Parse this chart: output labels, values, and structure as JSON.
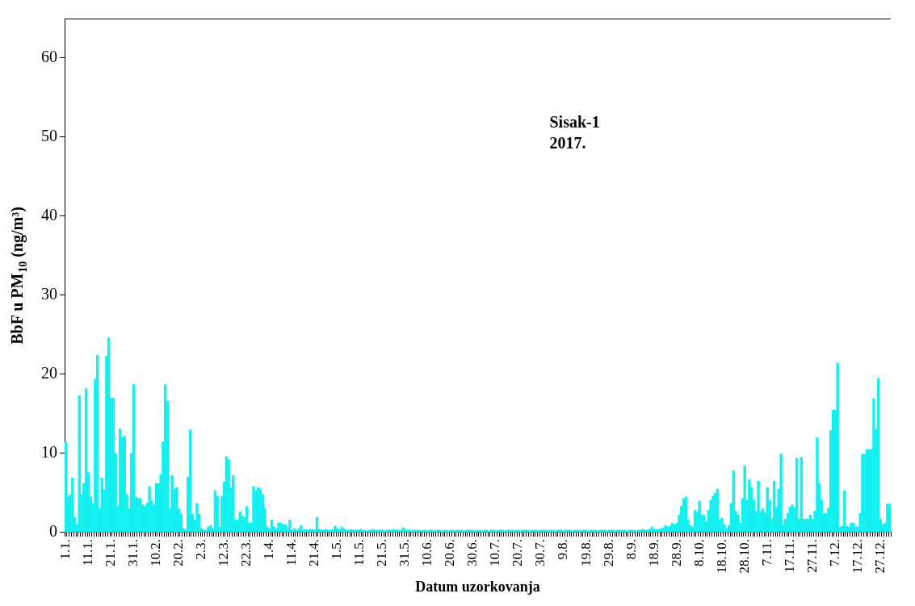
{
  "chart_data": {
    "type": "bar",
    "xlabel": "Datum uzorkovanja",
    "ylabel": "BbF u PM$_{10}$ (ng/m³)",
    "annotations": [
      "Sisak-1",
      "2017."
    ],
    "categories": [
      "1.1.",
      null,
      null,
      null,
      null,
      null,
      null,
      null,
      null,
      null,
      "11.1.",
      null,
      null,
      null,
      null,
      null,
      null,
      null,
      null,
      null,
      "21.1.",
      null,
      null,
      null,
      null,
      null,
      null,
      null,
      null,
      null,
      "31.1.",
      null,
      null,
      null,
      null,
      null,
      null,
      null,
      null,
      null,
      "10.2.",
      null,
      null,
      null,
      null,
      null,
      null,
      null,
      null,
      null,
      "20.2.",
      null,
      null,
      null,
      null,
      null,
      null,
      null,
      null,
      null,
      "2.3.",
      null,
      null,
      null,
      null,
      null,
      null,
      null,
      null,
      null,
      "12.3.",
      null,
      null,
      null,
      null,
      null,
      null,
      null,
      null,
      null,
      "22.3.",
      null,
      null,
      null,
      null,
      null,
      null,
      null,
      null,
      null,
      "1.4.",
      null,
      null,
      null,
      null,
      null,
      null,
      null,
      null,
      null,
      "11.4.",
      null,
      null,
      null,
      null,
      null,
      null,
      null,
      null,
      null,
      "21.4.",
      null,
      null,
      null,
      null,
      null,
      null,
      null,
      null,
      null,
      "1.5.",
      null,
      null,
      null,
      null,
      null,
      null,
      null,
      null,
      null,
      "11.5.",
      null,
      null,
      null,
      null,
      null,
      null,
      null,
      null,
      null,
      "21.5.",
      null,
      null,
      null,
      null,
      null,
      null,
      null,
      null,
      null,
      "31.5.",
      null,
      null,
      null,
      null,
      null,
      null,
      null,
      null,
      null,
      "10.6.",
      null,
      null,
      null,
      null,
      null,
      null,
      null,
      null,
      null,
      "20.6.",
      null,
      null,
      null,
      null,
      null,
      null,
      null,
      null,
      null,
      "30.6.",
      null,
      null,
      null,
      null,
      null,
      null,
      null,
      null,
      null,
      "10.7.",
      null,
      null,
      null,
      null,
      null,
      null,
      null,
      null,
      null,
      "20.7.",
      null,
      null,
      null,
      null,
      null,
      null,
      null,
      null,
      null,
      "30.7.",
      null,
      null,
      null,
      null,
      null,
      null,
      null,
      null,
      null,
      "9.8.",
      null,
      null,
      null,
      null,
      null,
      null,
      null,
      null,
      null,
      "19.8.",
      null,
      null,
      null,
      null,
      null,
      null,
      null,
      null,
      null,
      "29.8.",
      null,
      null,
      null,
      null,
      null,
      null,
      null,
      null,
      null,
      "8.9.",
      null,
      null,
      null,
      null,
      null,
      null,
      null,
      null,
      null,
      "18.9.",
      null,
      null,
      null,
      null,
      null,
      null,
      null,
      null,
      null,
      "28.9.",
      null,
      null,
      null,
      null,
      null,
      null,
      null,
      null,
      null,
      "8.10.",
      null,
      null,
      null,
      null,
      null,
      null,
      null,
      null,
      null,
      "18.10.",
      null,
      null,
      null,
      null,
      null,
      null,
      null,
      null,
      null,
      "28.10.",
      null,
      null,
      null,
      null,
      null,
      null,
      null,
      null,
      null,
      "7.11.",
      null,
      null,
      null,
      null,
      null,
      null,
      null,
      null,
      null,
      "17.11.",
      null,
      null,
      null,
      null,
      null,
      null,
      null,
      null,
      null,
      "27.11.",
      null,
      null,
      null,
      null,
      null,
      null,
      null,
      null,
      null,
      "7.12.",
      null,
      null,
      null,
      null,
      null,
      null,
      null,
      null,
      null,
      "17.12.",
      null,
      null,
      null,
      null,
      null,
      null,
      null,
      null,
      null,
      "27.12.",
      null,
      null,
      null,
      null
    ],
    "values": [
      11.4,
      4.5,
      4.8,
      6.9,
      1.9,
      1.0,
      17.3,
      4.8,
      6.2,
      18.2,
      7.6,
      4.5,
      3.7,
      19.4,
      22.4,
      3,
      6.9,
      5.4,
      22.3,
      24.6,
      17,
      17,
      10,
      3.3,
      13.1,
      12,
      12.2,
      4.8,
      3,
      10,
      18.7,
      4.5,
      4.3,
      4.3,
      3.5,
      3.3,
      3.7,
      5.8,
      4,
      3.5,
      6.2,
      6.2,
      7.3,
      11.5,
      18.7,
      16.6,
      3,
      7.2,
      5.5,
      5.7,
      3,
      2.3,
      0.5,
      0.3,
      7,
      13,
      2.3,
      1.6,
      3.7,
      2.3,
      0.5,
      0.3,
      0.3,
      0.7,
      0.9,
      0.5,
      5.3,
      4.6,
      0.7,
      4.6,
      6.4,
      9.6,
      9.2,
      5.7,
      7.2,
      1.6,
      1.6,
      2.6,
      2.1,
      1.9,
      3.3,
      1.2,
      1.2,
      5.8,
      5.3,
      5.7,
      5.5,
      4.8,
      3,
      0.7,
      0.5,
      1.6,
      0.7,
      0.5,
      1.2,
      1.2,
      1,
      1,
      0.5,
      1.6,
      0.3,
      0.5,
      0.3,
      0.5,
      0.9,
      0.3,
      0.4,
      0.3,
      0.4,
      0.4,
      0.3,
      1.9,
      0.4,
      0.3,
      0.3,
      0.4,
      0.3,
      0.3,
      0.4,
      0.8,
      0.5,
      0.4,
      0.7,
      0.5,
      0.3,
      0.3,
      0.4,
      0.3,
      0.3,
      0.3,
      0.4,
      0.3,
      0.3,
      0.2,
      0.3,
      0.3,
      0.4,
      0.3,
      0.3,
      0.3,
      0.3,
      0.2,
      0.3,
      0.3,
      0.3,
      0.4,
      0.3,
      0.3,
      0.3,
      0.6,
      0.4,
      0.3,
      0.3,
      0.2,
      0.3,
      0.3,
      0.3,
      0.2,
      0.3,
      0.3,
      0.2,
      0.3,
      0.3,
      0.2,
      0.3,
      0.3,
      0.2,
      0.3,
      0.3,
      0.2,
      0.3,
      0.3,
      0.2,
      0.3,
      0.3,
      0.3,
      0.2,
      0.3,
      0.3,
      0.3,
      0.3,
      0.2,
      0.3,
      0.3,
      0.2,
      0.3,
      0.3,
      0.2,
      0.3,
      0.3,
      0.2,
      0.3,
      0.3,
      0.3,
      0.2,
      0.3,
      0.3,
      0.3,
      0.2,
      0.3,
      0.3,
      0.2,
      0.3,
      0.3,
      0.3,
      0.2,
      0.3,
      0.3,
      0.3,
      0.2,
      0.3,
      0.3,
      0.3,
      0.2,
      0.3,
      0.3,
      0.2,
      0.3,
      0.3,
      0.3,
      0.2,
      0.3,
      0.3,
      0.3,
      0.2,
      0.3,
      0.3,
      0.2,
      0.3,
      0.3,
      0.3,
      0.2,
      0.3,
      0.3,
      0.3,
      0.2,
      0.3,
      0.3,
      0.3,
      0.2,
      0.3,
      0.3,
      0.3,
      0.2,
      0.3,
      0.3,
      0.3,
      0.3,
      0.2,
      0.3,
      0.3,
      0.3,
      0.2,
      0.3,
      0.3,
      0.4,
      0.3,
      0.3,
      0.4,
      0.7,
      0.4,
      0.4,
      0.4,
      0.5,
      0.6,
      0.9,
      0.7,
      0.8,
      1.2,
      1.0,
      1.2,
      2.2,
      3.3,
      4.3,
      4.5,
      1.6,
      0.9,
      0.7,
      2.8,
      2.6,
      4.0,
      2.2,
      2.2,
      1.4,
      2.8,
      4.1,
      4.6,
      5.0,
      5.5,
      1.6,
      1.8,
      1.0,
      0.5,
      0.9,
      3.7,
      7.8,
      2.7,
      2.2,
      1.2,
      4.3,
      8.4,
      4.1,
      6.7,
      5.7,
      4.1,
      2.7,
      6.5,
      2.7,
      3.0,
      2.5,
      5.7,
      4.1,
      1.7,
      6.5,
      3.2,
      5.5,
      9.9,
      1.0,
      1.7,
      2.4,
      3.2,
      3.5,
      3.1,
      9.4,
      1.7,
      9.5,
      1.7,
      1.7,
      1.7,
      2.2,
      1.7,
      2.7,
      12,
      6.2,
      4.1,
      2.4,
      2.4,
      3.1,
      12.9,
      15.5,
      15.5,
      21.4,
      0.7,
      0.8,
      5.3,
      0.8,
      0.7,
      1.2,
      1.2,
      0.7,
      0.7,
      2.4,
      9.9,
      9.9,
      10.5,
      10.5,
      10.5,
      16.9,
      13,
      19.5,
      1.7,
      1.0,
      1.2,
      3.6,
      3.6
    ],
    "color": "#14f0f0",
    "ylim": [
      0,
      65
    ],
    "yticks": [
      0,
      10,
      20,
      30,
      40,
      50,
      60
    ],
    "grid": false,
    "legend": false
  }
}
